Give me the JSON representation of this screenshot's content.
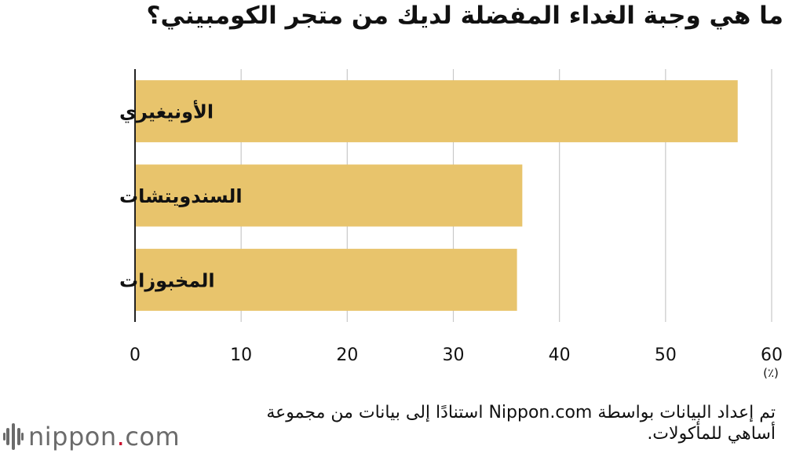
{
  "title": "ما هي وجبة الغداء المفضلة لديك من متجر الكومبيني؟",
  "unit_label": "(٪)",
  "source_text": "تم إعداد البيانات بواسطة Nippon.com استنادًا إلى بيانات من مجموعة أساهي للمأكولات.",
  "logo": {
    "name": "nippon",
    "dot": ".",
    "tld": "com"
  },
  "colors": {
    "bar": "#e8c46c",
    "grid": "#c8c8c8",
    "axis": "#222222"
  },
  "chart_data": {
    "type": "bar",
    "orientation": "horizontal",
    "categories": [
      "الأونيغيري",
      "السندويتشات",
      "المخبوزات"
    ],
    "values": [
      56.8,
      36.5,
      36.0
    ],
    "xlim": [
      0,
      60
    ],
    "xticks": [
      0,
      10,
      20,
      30,
      40,
      50,
      60
    ],
    "grid": true
  }
}
